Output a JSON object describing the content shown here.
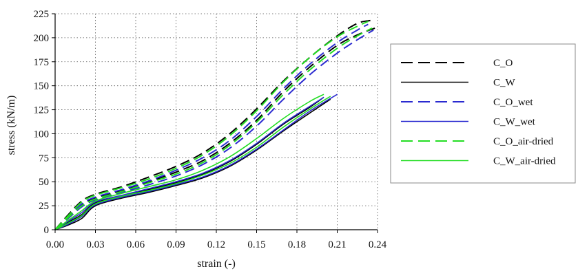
{
  "chart_data": {
    "type": "line",
    "xlabel": "strain (-)",
    "ylabel": "stress (kN/m)",
    "xlim": [
      0,
      0.24
    ],
    "ylim": [
      0,
      225
    ],
    "x_ticks": [
      "0.00",
      "0.03",
      "0.06",
      "0.09",
      "0.12",
      "0.15",
      "0.18",
      "0.21",
      "0.24"
    ],
    "y_ticks": [
      "0",
      "25",
      "50",
      "75",
      "100",
      "125",
      "150",
      "175",
      "200",
      "225"
    ],
    "grid": "dotted",
    "legend_position": "right",
    "series": [
      {
        "name": "C_O",
        "color": "#000000",
        "dash": "dashed",
        "curves": [
          {
            "x": [
              0,
              0.01,
              0.02,
              0.03,
              0.05,
              0.07,
              0.09,
              0.11,
              0.13,
              0.15,
              0.17,
              0.19,
              0.21,
              0.225,
              0.235
            ],
            "y": [
              0,
              16,
              30,
              37,
              45,
              55,
              66,
              80,
              100,
              126,
              155,
              180,
              202,
              215,
              218
            ]
          },
          {
            "x": [
              0,
              0.01,
              0.02,
              0.03,
              0.05,
              0.07,
              0.09,
              0.11,
              0.13,
              0.15,
              0.17,
              0.19,
              0.21,
              0.225,
              0.238
            ],
            "y": [
              0,
              14,
              26,
              33,
              41,
              50,
              60,
              72,
              90,
              114,
              144,
              170,
              192,
              203,
              210
            ]
          }
        ]
      },
      {
        "name": "C_W",
        "color": "#000000",
        "dash": "solid",
        "curves": [
          {
            "x": [
              0,
              0.01,
              0.02,
              0.03,
              0.05,
              0.07,
              0.09,
              0.11,
              0.13,
              0.15,
              0.17,
              0.19,
              0.205
            ],
            "y": [
              0,
              5,
              12,
              25,
              33,
              39,
              46,
              54,
              66,
              83,
              103,
              122,
              136
            ]
          },
          {
            "x": [
              0,
              0.01,
              0.02,
              0.03,
              0.05,
              0.07,
              0.09,
              0.11,
              0.13,
              0.15,
              0.17,
              0.19,
              0.2
            ],
            "y": [
              0,
              8,
              16,
              28,
              35,
              42,
              49,
              58,
              71,
              89,
              110,
              128,
              138
            ]
          }
        ]
      },
      {
        "name": "C_O_wet",
        "color": "#2a2ad0",
        "dash": "dashed",
        "curves": [
          {
            "x": [
              0,
              0.01,
              0.02,
              0.03,
              0.05,
              0.07,
              0.09,
              0.11,
              0.13,
              0.15,
              0.17,
              0.19,
              0.21,
              0.225,
              0.237
            ],
            "y": [
              0,
              12,
              24,
              31,
              39,
              47,
              56,
              68,
              85,
              108,
              136,
              162,
              184,
              198,
              208
            ]
          },
          {
            "x": [
              0,
              0.01,
              0.02,
              0.03,
              0.05,
              0.07,
              0.09,
              0.11,
              0.13,
              0.15,
              0.17,
              0.19,
              0.21,
              0.225,
              0.233
            ],
            "y": [
              0,
              13,
              27,
              34,
              42,
              51,
              62,
              75,
              93,
              118,
              147,
              173,
              195,
              208,
              214
            ]
          }
        ]
      },
      {
        "name": "C_W_wet",
        "color": "#2a2ad0",
        "dash": "solid",
        "curves": [
          {
            "x": [
              0,
              0.01,
              0.02,
              0.03,
              0.05,
              0.07,
              0.09,
              0.11,
              0.13,
              0.15,
              0.17,
              0.19,
              0.21
            ],
            "y": [
              0,
              6,
              14,
              26,
              34,
              40,
              47,
              55,
              67,
              84,
              104,
              124,
              141
            ]
          },
          {
            "x": [
              0,
              0.01,
              0.02,
              0.03,
              0.05,
              0.07,
              0.09,
              0.11,
              0.13,
              0.15,
              0.17,
              0.19,
              0.2
            ],
            "y": [
              0,
              9,
              18,
              29,
              36,
              43,
              50,
              59,
              72,
              90,
              111,
              129,
              138
            ]
          }
        ]
      },
      {
        "name": "C_O_air-dried",
        "color": "#22dd22",
        "dash": "dashed",
        "curves": [
          {
            "x": [
              0,
              0.01,
              0.02,
              0.03,
              0.05,
              0.07,
              0.09,
              0.11,
              0.13,
              0.15,
              0.17,
              0.19,
              0.21,
              0.225,
              0.233
            ],
            "y": [
              0,
              15,
              29,
              36,
              44,
              53,
              64,
              78,
              98,
              124,
              154,
              180,
              201,
              212,
              217
            ]
          },
          {
            "x": [
              0,
              0.01,
              0.02,
              0.03,
              0.05,
              0.07,
              0.09,
              0.11,
              0.13,
              0.15,
              0.17,
              0.19,
              0.21,
              0.225,
              0.236
            ],
            "y": [
              0,
              13,
              25,
              32,
              40,
              49,
              58,
              70,
              88,
              112,
              141,
              167,
              189,
              202,
              210
            ]
          }
        ]
      },
      {
        "name": "C_W_air-dried",
        "color": "#22dd22",
        "dash": "solid",
        "curves": [
          {
            "x": [
              0,
              0.01,
              0.02,
              0.03,
              0.05,
              0.07,
              0.09,
              0.11,
              0.13,
              0.15,
              0.17,
              0.19,
              0.2
            ],
            "y": [
              0,
              10,
              20,
              30,
              38,
              45,
              52,
              62,
              76,
              95,
              116,
              134,
              141
            ]
          },
          {
            "x": [
              0,
              0.01,
              0.02,
              0.03,
              0.05,
              0.07,
              0.09,
              0.11,
              0.13,
              0.15,
              0.17,
              0.19,
              0.205
            ],
            "y": [
              0,
              7,
              15,
              27,
              35,
              41,
              48,
              57,
              69,
              86,
              107,
              126,
              139
            ]
          }
        ]
      }
    ]
  }
}
